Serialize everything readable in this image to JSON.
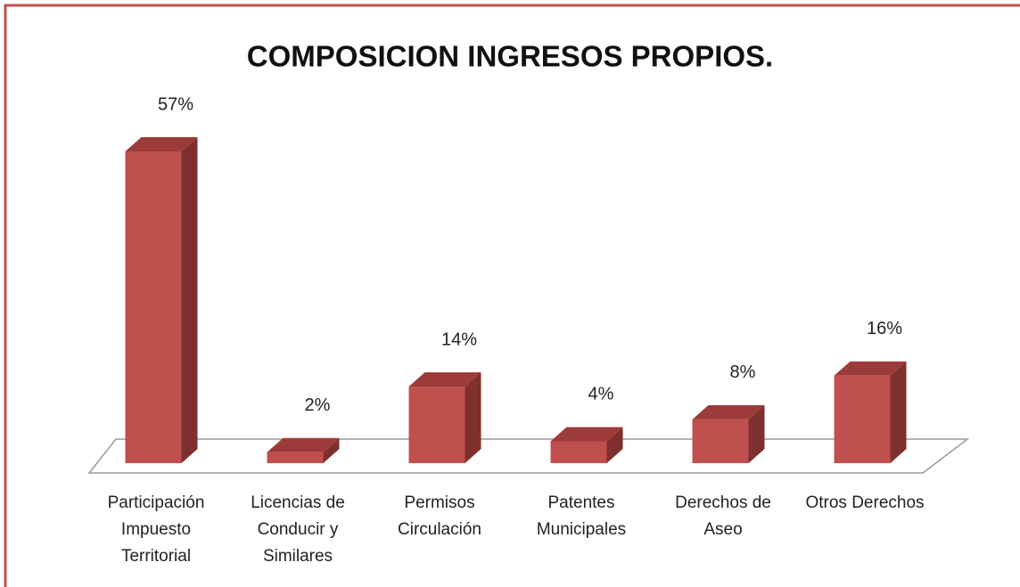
{
  "chart_data": {
    "type": "bar3d",
    "title": "COMPOSICION INGRESOS PROPIOS.",
    "categories": [
      "Participación Impuesto Territorial",
      "Licencias de Conducir y Similares",
      "Permisos Circulación",
      "Patentes Municipales",
      "Derechos de Aseo",
      "Otros Derechos"
    ],
    "values": [
      57,
      2,
      14,
      4,
      8,
      16
    ],
    "value_labels": [
      "57%",
      "2%",
      "14%",
      "4%",
      "8%",
      "16%"
    ],
    "color": "#c0504d"
  }
}
